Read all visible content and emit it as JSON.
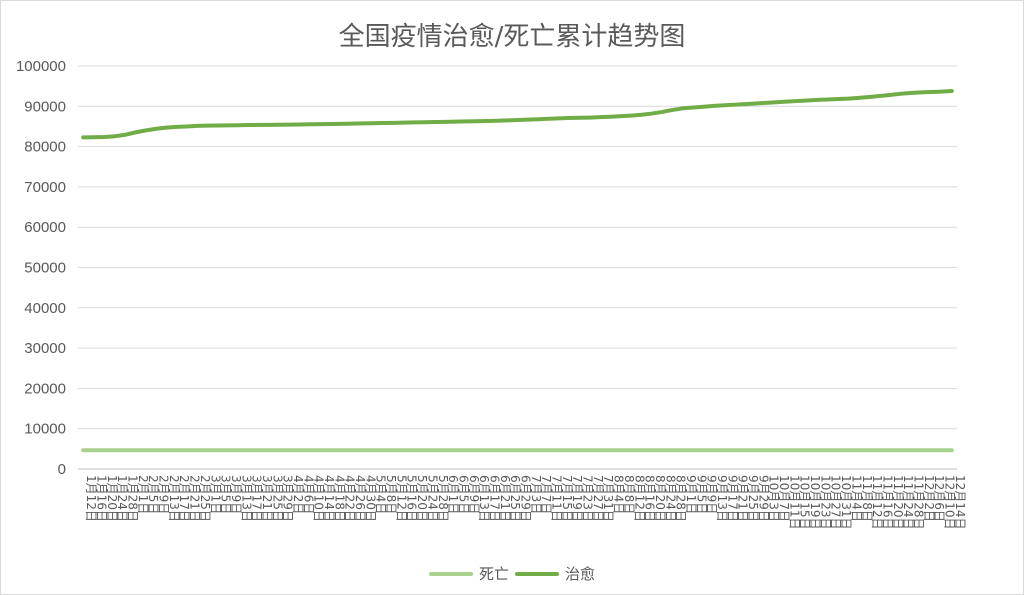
{
  "chart_data": {
    "type": "line",
    "title": "全国疫情治愈/死亡累计趋势图",
    "ylim": [
      0,
      100000
    ],
    "yticks": [
      0,
      10000,
      20000,
      30000,
      40000,
      50000,
      60000,
      70000,
      80000,
      90000,
      100000
    ],
    "grid": true,
    "legend_position": "bottom",
    "categories": [
      "1月12日",
      "1月16日",
      "1月20日",
      "1月24日",
      "1月28日",
      "2月1日",
      "2月5日",
      "2月9日",
      "2月13日",
      "2月17日",
      "2月21日",
      "2月25日",
      "3月1日",
      "3月5日",
      "3月9日",
      "3月13日",
      "3月17日",
      "3月21日",
      "3月25日",
      "3月29日",
      "4月2日",
      "4月6日",
      "4月10日",
      "4月14日",
      "4月18日",
      "4月22日",
      "4月26日",
      "4月30日",
      "5月4日",
      "5月8日",
      "5月12日",
      "5月16日",
      "5月20日",
      "5月24日",
      "5月28日",
      "6月1日",
      "6月5日",
      "6月9日",
      "6月13日",
      "6月17日",
      "6月21日",
      "6月25日",
      "6月29日",
      "7月3日",
      "7月7日",
      "7月11日",
      "7月15日",
      "7月19日",
      "7月23日",
      "7月27日",
      "7月31日",
      "8月4日",
      "8月8日",
      "8月12日",
      "8月16日",
      "8月20日",
      "8月24日",
      "8月28日",
      "9月1日",
      "9月5日",
      "9月9日",
      "9月13日",
      "9月17日",
      "9月21日",
      "9月25日",
      "9月29日",
      "10月3日",
      "10月7日",
      "10月11日",
      "10月15日",
      "10月19日",
      "10月23日",
      "10月27日",
      "10月31日",
      "11月4日",
      "11月8日",
      "11月12日",
      "11月16日",
      "11月20日",
      "11月24日",
      "11月28日",
      "12月2日",
      "12月6日",
      "12月10日",
      "12月14日"
    ],
    "series": [
      {
        "name": "死亡",
        "color": "#a9d18e",
        "values": [
          4640,
          4640,
          4640,
          4640,
          4640,
          4640,
          4640,
          4640,
          4640,
          4640,
          4640,
          4640,
          4640,
          4640,
          4640,
          4640,
          4640,
          4640,
          4640,
          4640,
          4640,
          4640,
          4640,
          4640,
          4640,
          4640,
          4640,
          4640,
          4640,
          4640,
          4640,
          4640,
          4640,
          4640,
          4640,
          4640,
          4640,
          4640,
          4640,
          4640,
          4640,
          4640,
          4640,
          4640,
          4640,
          4640,
          4640,
          4640,
          4640,
          4640,
          4640,
          4640,
          4640,
          4640,
          4640,
          4640,
          4640,
          4640,
          4640,
          4640,
          4640,
          4640,
          4640,
          4640,
          4640,
          4640,
          4640,
          4640,
          4640,
          4640,
          4640,
          4640,
          4640,
          4640,
          4640,
          4640,
          4640,
          4640,
          4640,
          4640,
          4640,
          4640,
          4640,
          4640,
          4640
        ]
      },
      {
        "name": "治愈",
        "color": "#70ad47",
        "values": [
          82300,
          82320,
          82380,
          82550,
          82900,
          83500,
          84000,
          84400,
          84700,
          84900,
          85000,
          85150,
          85200,
          85250,
          85280,
          85300,
          85350,
          85380,
          85400,
          85420,
          85450,
          85500,
          85550,
          85580,
          85600,
          85650,
          85700,
          85750,
          85800,
          85850,
          85900,
          85950,
          86000,
          86050,
          86100,
          86150,
          86200,
          86250,
          86300,
          86350,
          86400,
          86500,
          86600,
          86700,
          86800,
          86900,
          87000,
          87100,
          87150,
          87200,
          87300,
          87400,
          87550,
          87700,
          87900,
          88200,
          88600,
          89100,
          89500,
          89700,
          89900,
          90100,
          90250,
          90400,
          90550,
          90700,
          90850,
          91000,
          91150,
          91300,
          91450,
          91600,
          91700,
          91800,
          91900,
          92100,
          92300,
          92550,
          92800,
          93100,
          93300,
          93450,
          93550,
          93650,
          93800
        ]
      }
    ]
  }
}
